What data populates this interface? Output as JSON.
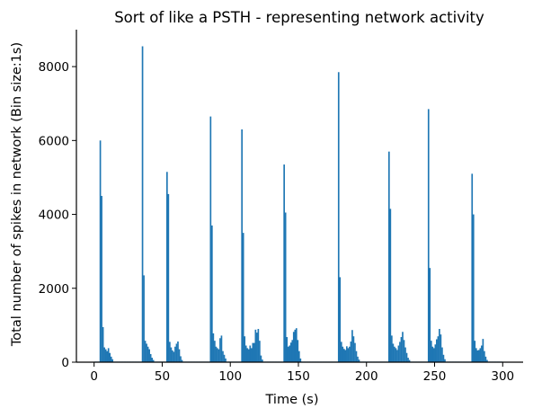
{
  "colors": {
    "bar": "#1f77b4",
    "axis": "#000000",
    "background": "#ffffff"
  },
  "chart_data": {
    "type": "bar",
    "title": "Sort of like a PSTH - representing network activity",
    "xlabel": "Time (s)",
    "ylabel": "Total number of spikes in network (Bin size:1s)",
    "bin_size": 1,
    "xlim": [
      -13,
      315
    ],
    "ylim": [
      0,
      9000
    ],
    "xticks": [
      0,
      50,
      100,
      150,
      200,
      250,
      300
    ],
    "yticks": [
      0,
      2000,
      4000,
      6000,
      8000
    ],
    "grid": false,
    "legend": "none",
    "baseline": 15,
    "bursts": [
      {
        "start": 4,
        "values": [
          6000,
          4500,
          950,
          400,
          350,
          300,
          380,
          250,
          150,
          80
        ]
      },
      {
        "start": 35,
        "values": [
          8550,
          2350,
          580,
          500,
          420,
          350,
          220,
          120,
          60
        ]
      },
      {
        "start": 53,
        "values": [
          5150,
          4550,
          550,
          400,
          320,
          280,
          420,
          500,
          560,
          350,
          160,
          60
        ]
      },
      {
        "start": 85,
        "values": [
          6650,
          3700,
          780,
          580,
          420,
          380,
          350,
          650,
          720,
          300,
          200,
          100
        ]
      },
      {
        "start": 108,
        "values": [
          6300,
          3500,
          700,
          450,
          380,
          350,
          450,
          380,
          520,
          520,
          880,
          800,
          900,
          580,
          180,
          70
        ]
      },
      {
        "start": 139,
        "values": [
          5350,
          4050,
          680,
          420,
          450,
          530,
          600,
          820,
          880,
          920,
          600,
          300,
          100
        ]
      },
      {
        "start": 179,
        "values": [
          7850,
          2300,
          550,
          420,
          360,
          330,
          430,
          380,
          420,
          560,
          870,
          700,
          520,
          300,
          150,
          70
        ]
      },
      {
        "start": 216,
        "values": [
          5700,
          4150,
          720,
          500,
          420,
          380,
          330,
          450,
          550,
          680,
          820,
          600,
          400,
          250,
          120,
          60
        ]
      },
      {
        "start": 245,
        "values": [
          6850,
          2550,
          580,
          420,
          380,
          480,
          620,
          700,
          900,
          750,
          400,
          200,
          80
        ]
      },
      {
        "start": 277,
        "values": [
          5100,
          4000,
          580,
          380,
          320,
          330,
          380,
          450,
          630,
          300,
          150,
          60
        ]
      }
    ]
  }
}
